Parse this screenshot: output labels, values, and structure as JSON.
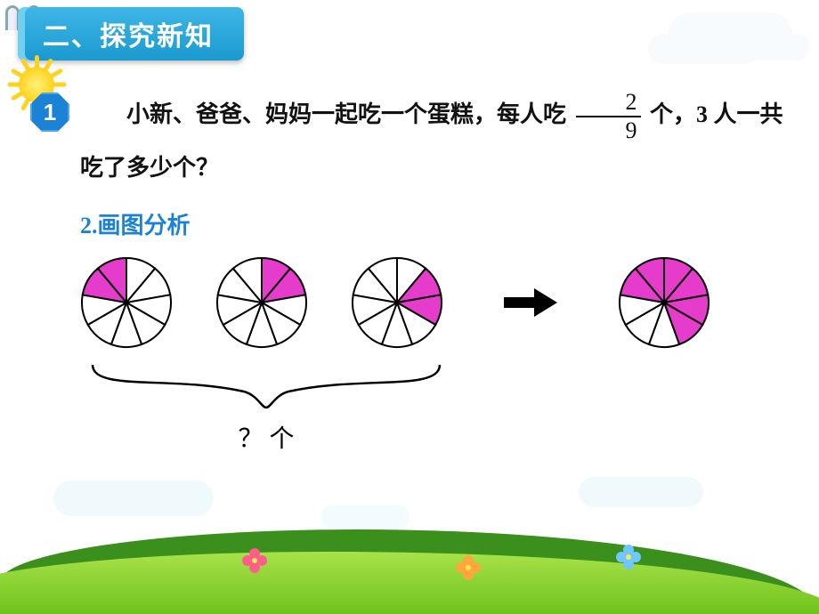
{
  "header": {
    "title": "二、探究新知"
  },
  "badge": {
    "number": "1"
  },
  "problem": {
    "part1": "小新、爸爸、妈妈一起吃一个蛋糕，每人吃",
    "fraction": {
      "numerator": "2",
      "denominator": "9"
    },
    "part2": "个，3 人一共吃了多少个？"
  },
  "subTitle": "2.画图分析",
  "diagram": {
    "numSlices": 9,
    "pies": [
      {
        "highlighted": [
          7,
          8
        ]
      },
      {
        "highlighted": [
          0,
          1
        ]
      },
      {
        "highlighted": [
          1,
          2
        ]
      }
    ],
    "resultPie": {
      "highlighted": [
        7,
        8,
        0,
        1,
        2,
        3
      ]
    },
    "highlightColor": "#e63ccb",
    "emptyColor": "#ffffff",
    "strokeColor": "#000000",
    "braceLabel": "？ 个",
    "arrowColor": "#000000"
  },
  "style": {
    "headerBg": "#1b9ad0",
    "badgeBg": "#1b82d6",
    "subtitleColor": "#1b82d6",
    "grassBack": "#3a8f1d",
    "grassFront": "#6fc21c",
    "sunColor": "#ffd21f"
  }
}
